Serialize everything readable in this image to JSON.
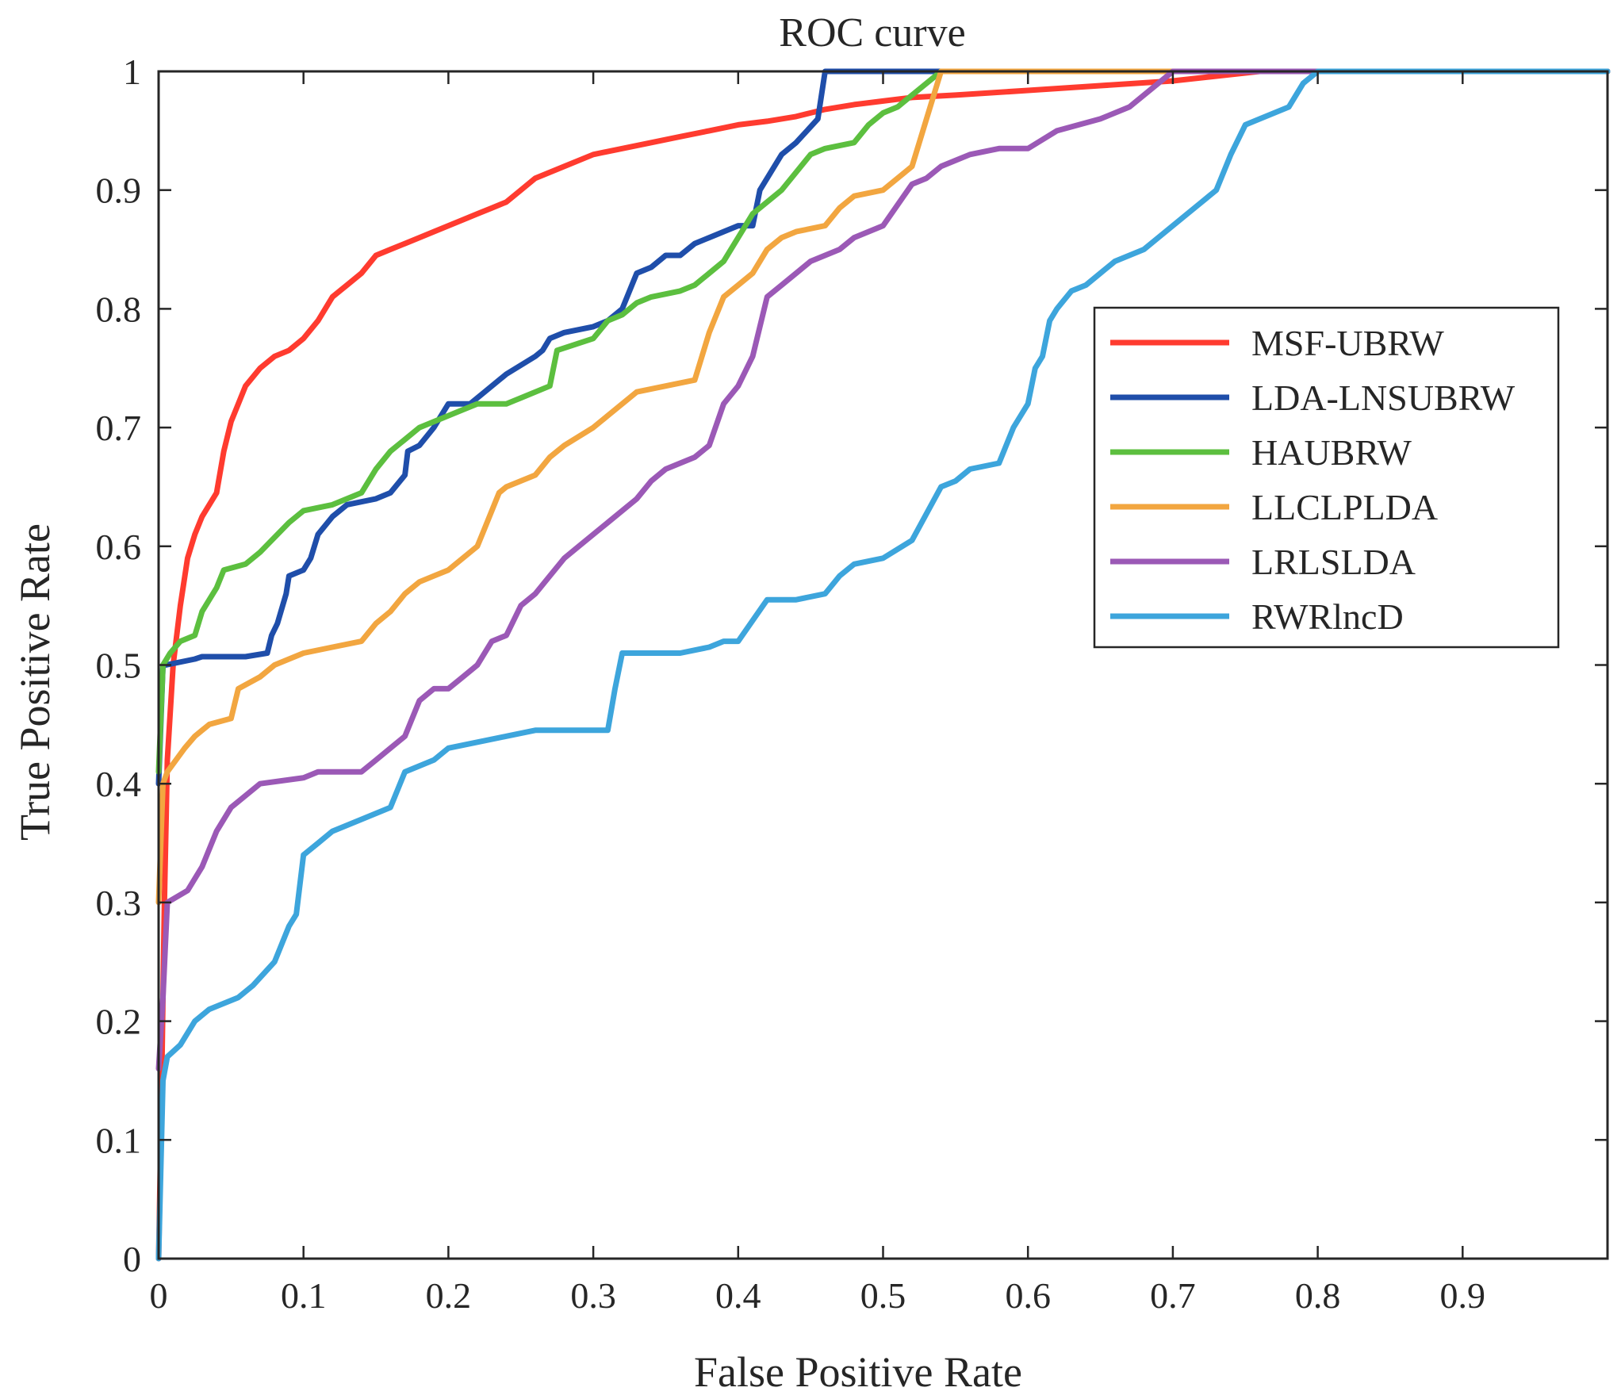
{
  "chart_data": {
    "type": "line",
    "title": "ROC curve",
    "xlabel": "False Positive Rate",
    "ylabel": "True Positive Rate",
    "xlim": [
      0,
      1
    ],
    "ylim": [
      0,
      1
    ],
    "xticks": [
      "0",
      "0.1",
      "0.2",
      "0.3",
      "0.4",
      "0.5",
      "0.6",
      "0.7",
      "0.8",
      "0.9"
    ],
    "xtick_values": [
      0,
      0.1,
      0.2,
      0.3,
      0.4,
      0.5,
      0.6,
      0.7,
      0.8,
      0.9
    ],
    "yticks": [
      "0",
      "0.1",
      "0.2",
      "0.3",
      "0.4",
      "0.5",
      "0.6",
      "0.7",
      "0.8",
      "0.9",
      "1"
    ],
    "ytick_values": [
      0,
      0.1,
      0.2,
      0.3,
      0.4,
      0.5,
      0.6,
      0.7,
      0.8,
      0.9,
      1
    ],
    "grid": false,
    "legend_position": "right",
    "series": [
      {
        "name": "MSF-UBRW",
        "color": "#ff3b2f",
        "x": [
          0,
          0.002,
          0.004,
          0.006,
          0.01,
          0.015,
          0.02,
          0.025,
          0.03,
          0.04,
          0.045,
          0.05,
          0.055,
          0.06,
          0.07,
          0.08,
          0.09,
          0.1,
          0.11,
          0.12,
          0.125,
          0.13,
          0.14,
          0.15,
          0.16,
          0.17,
          0.18,
          0.19,
          0.2,
          0.21,
          0.22,
          0.23,
          0.24,
          0.25,
          0.26,
          0.27,
          0.28,
          0.3,
          0.32,
          0.34,
          0.36,
          0.38,
          0.4,
          0.42,
          0.44,
          0.45,
          0.46,
          0.48,
          0.5,
          0.52,
          0.55,
          0.6,
          0.65,
          0.7,
          0.73,
          0.76,
          0.8,
          1.0
        ],
        "y": [
          0.0,
          0.14,
          0.3,
          0.42,
          0.5,
          0.55,
          0.59,
          0.61,
          0.625,
          0.645,
          0.68,
          0.705,
          0.72,
          0.735,
          0.75,
          0.76,
          0.765,
          0.775,
          0.79,
          0.81,
          0.815,
          0.82,
          0.83,
          0.845,
          0.85,
          0.855,
          0.86,
          0.865,
          0.87,
          0.875,
          0.88,
          0.885,
          0.89,
          0.9,
          0.91,
          0.915,
          0.92,
          0.93,
          0.935,
          0.94,
          0.945,
          0.95,
          0.955,
          0.958,
          0.962,
          0.965,
          0.968,
          0.972,
          0.975,
          0.978,
          0.98,
          0.984,
          0.988,
          0.992,
          0.996,
          1.0,
          1.0,
          1.0
        ]
      },
      {
        "name": "LDA-LNSUBRW",
        "color": "#1f4eaa",
        "x": [
          0,
          0.003,
          0.005,
          0.025,
          0.03,
          0.06,
          0.075,
          0.078,
          0.082,
          0.088,
          0.09,
          0.1,
          0.105,
          0.11,
          0.12,
          0.125,
          0.13,
          0.15,
          0.16,
          0.17,
          0.172,
          0.18,
          0.19,
          0.2,
          0.215,
          0.225,
          0.235,
          0.24,
          0.26,
          0.265,
          0.27,
          0.28,
          0.3,
          0.31,
          0.32,
          0.33,
          0.34,
          0.35,
          0.36,
          0.37,
          0.38,
          0.39,
          0.4,
          0.41,
          0.415,
          0.43,
          0.44,
          0.455,
          0.46,
          0.5,
          0.54,
          1.0
        ],
        "y": [
          0.4,
          0.5,
          0.5,
          0.505,
          0.507,
          0.507,
          0.51,
          0.525,
          0.535,
          0.56,
          0.575,
          0.58,
          0.59,
          0.61,
          0.625,
          0.63,
          0.635,
          0.64,
          0.645,
          0.66,
          0.68,
          0.685,
          0.7,
          0.72,
          0.72,
          0.73,
          0.74,
          0.745,
          0.76,
          0.765,
          0.775,
          0.78,
          0.785,
          0.79,
          0.8,
          0.83,
          0.835,
          0.845,
          0.845,
          0.855,
          0.86,
          0.865,
          0.87,
          0.87,
          0.9,
          0.93,
          0.94,
          0.96,
          1.0,
          1.0,
          1.0,
          1.0
        ]
      },
      {
        "name": "HAUBRW",
        "color": "#5cbf3f",
        "x": [
          0,
          0.003,
          0.008,
          0.015,
          0.025,
          0.03,
          0.035,
          0.04,
          0.045,
          0.06,
          0.07,
          0.09,
          0.1,
          0.12,
          0.14,
          0.15,
          0.16,
          0.17,
          0.18,
          0.2,
          0.21,
          0.22,
          0.24,
          0.25,
          0.27,
          0.275,
          0.3,
          0.31,
          0.32,
          0.33,
          0.34,
          0.36,
          0.37,
          0.38,
          0.39,
          0.4,
          0.41,
          0.42,
          0.43,
          0.44,
          0.45,
          0.46,
          0.48,
          0.49,
          0.5,
          0.51,
          0.52,
          0.53,
          0.54,
          1.0
        ],
        "y": [
          0.41,
          0.5,
          0.51,
          0.52,
          0.525,
          0.545,
          0.555,
          0.565,
          0.58,
          0.585,
          0.595,
          0.62,
          0.63,
          0.635,
          0.645,
          0.665,
          0.68,
          0.69,
          0.7,
          0.71,
          0.715,
          0.72,
          0.72,
          0.725,
          0.735,
          0.765,
          0.775,
          0.79,
          0.795,
          0.805,
          0.81,
          0.815,
          0.82,
          0.83,
          0.84,
          0.86,
          0.88,
          0.89,
          0.9,
          0.915,
          0.93,
          0.935,
          0.94,
          0.955,
          0.965,
          0.97,
          0.98,
          0.99,
          1.0,
          1.0
        ]
      },
      {
        "name": "LLCLPLDA",
        "color": "#f2a640",
        "x": [
          0,
          0.003,
          0.006,
          0.012,
          0.018,
          0.025,
          0.035,
          0.05,
          0.055,
          0.07,
          0.08,
          0.09,
          0.1,
          0.12,
          0.14,
          0.15,
          0.16,
          0.17,
          0.18,
          0.19,
          0.2,
          0.22,
          0.225,
          0.235,
          0.24,
          0.26,
          0.27,
          0.28,
          0.3,
          0.31,
          0.33,
          0.35,
          0.37,
          0.38,
          0.39,
          0.4,
          0.41,
          0.42,
          0.43,
          0.44,
          0.46,
          0.47,
          0.48,
          0.5,
          0.52,
          0.53,
          0.54,
          1.0
        ],
        "y": [
          0.3,
          0.4,
          0.41,
          0.42,
          0.43,
          0.44,
          0.45,
          0.455,
          0.48,
          0.49,
          0.5,
          0.505,
          0.51,
          0.515,
          0.52,
          0.535,
          0.545,
          0.56,
          0.57,
          0.575,
          0.58,
          0.6,
          0.615,
          0.645,
          0.65,
          0.66,
          0.675,
          0.685,
          0.7,
          0.71,
          0.73,
          0.735,
          0.74,
          0.78,
          0.81,
          0.82,
          0.83,
          0.85,
          0.86,
          0.865,
          0.87,
          0.885,
          0.895,
          0.9,
          0.92,
          0.96,
          1.0,
          1.0
        ]
      },
      {
        "name": "LRLSLDA",
        "color": "#9b59b6",
        "x": [
          0,
          0.003,
          0.006,
          0.02,
          0.03,
          0.04,
          0.05,
          0.06,
          0.07,
          0.1,
          0.11,
          0.14,
          0.15,
          0.16,
          0.17,
          0.18,
          0.19,
          0.2,
          0.21,
          0.22,
          0.23,
          0.24,
          0.25,
          0.26,
          0.27,
          0.28,
          0.29,
          0.3,
          0.31,
          0.33,
          0.34,
          0.35,
          0.36,
          0.37,
          0.38,
          0.39,
          0.4,
          0.41,
          0.42,
          0.43,
          0.44,
          0.45,
          0.46,
          0.47,
          0.48,
          0.5,
          0.52,
          0.53,
          0.54,
          0.55,
          0.56,
          0.58,
          0.6,
          0.62,
          0.65,
          0.67,
          0.69,
          0.7,
          0.71,
          0.75,
          0.8,
          1.0
        ],
        "y": [
          0.16,
          0.22,
          0.3,
          0.31,
          0.33,
          0.36,
          0.38,
          0.39,
          0.4,
          0.405,
          0.41,
          0.41,
          0.42,
          0.43,
          0.44,
          0.47,
          0.48,
          0.48,
          0.49,
          0.5,
          0.52,
          0.525,
          0.55,
          0.56,
          0.575,
          0.59,
          0.6,
          0.61,
          0.62,
          0.64,
          0.655,
          0.665,
          0.67,
          0.675,
          0.685,
          0.72,
          0.735,
          0.76,
          0.81,
          0.82,
          0.83,
          0.84,
          0.845,
          0.85,
          0.86,
          0.87,
          0.905,
          0.91,
          0.92,
          0.925,
          0.93,
          0.935,
          0.935,
          0.95,
          0.96,
          0.97,
          0.99,
          1.0,
          1.0,
          1.0,
          1.0,
          1.0
        ]
      },
      {
        "name": "RWRlncD",
        "color": "#3da5dc",
        "x": [
          0,
          0.003,
          0.006,
          0.015,
          0.025,
          0.035,
          0.055,
          0.065,
          0.08,
          0.09,
          0.095,
          0.1,
          0.11,
          0.12,
          0.13,
          0.14,
          0.16,
          0.17,
          0.18,
          0.19,
          0.2,
          0.22,
          0.24,
          0.26,
          0.31,
          0.315,
          0.32,
          0.33,
          0.34,
          0.36,
          0.38,
          0.39,
          0.4,
          0.42,
          0.44,
          0.46,
          0.47,
          0.48,
          0.5,
          0.52,
          0.54,
          0.55,
          0.56,
          0.58,
          0.59,
          0.6,
          0.605,
          0.61,
          0.615,
          0.62,
          0.63,
          0.64,
          0.65,
          0.66,
          0.67,
          0.68,
          0.69,
          0.7,
          0.71,
          0.72,
          0.73,
          0.74,
          0.75,
          0.76,
          0.77,
          0.78,
          0.79,
          0.8,
          0.81,
          1.0
        ],
        "y": [
          0.0,
          0.15,
          0.17,
          0.18,
          0.2,
          0.21,
          0.22,
          0.23,
          0.25,
          0.28,
          0.29,
          0.34,
          0.35,
          0.36,
          0.365,
          0.37,
          0.38,
          0.41,
          0.415,
          0.42,
          0.43,
          0.435,
          0.44,
          0.445,
          0.445,
          0.48,
          0.51,
          0.51,
          0.51,
          0.51,
          0.515,
          0.52,
          0.52,
          0.555,
          0.555,
          0.56,
          0.575,
          0.585,
          0.59,
          0.605,
          0.65,
          0.655,
          0.665,
          0.67,
          0.7,
          0.72,
          0.75,
          0.76,
          0.79,
          0.8,
          0.815,
          0.82,
          0.83,
          0.84,
          0.845,
          0.85,
          0.86,
          0.87,
          0.88,
          0.89,
          0.9,
          0.93,
          0.955,
          0.96,
          0.965,
          0.97,
          0.99,
          1.0,
          1.0,
          1.0
        ]
      }
    ]
  }
}
